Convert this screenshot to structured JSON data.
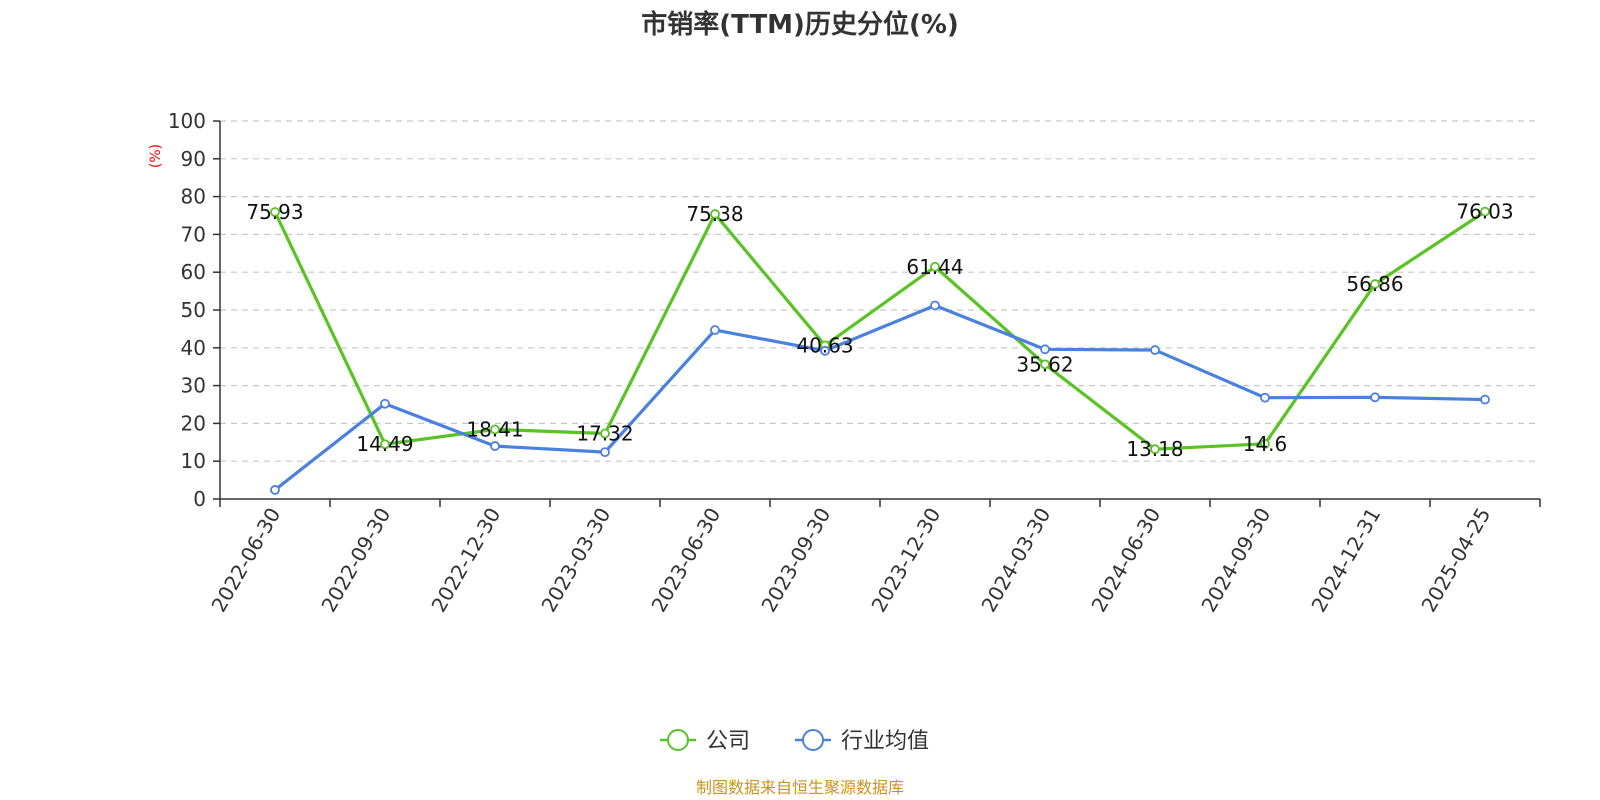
{
  "chart_data": {
    "type": "line",
    "title": "市销率(TTM)历史分位(%)",
    "ylabel": "(%)",
    "ylim": [
      0,
      100
    ],
    "yticks": [
      0,
      10,
      20,
      30,
      40,
      50,
      60,
      70,
      80,
      90,
      100
    ],
    "grid": true,
    "legend_position": "bottom-center",
    "categories": [
      "2022-06-30",
      "2022-09-30",
      "2022-12-30",
      "2023-03-30",
      "2023-06-30",
      "2023-09-30",
      "2023-12-30",
      "2024-03-30",
      "2024-06-30",
      "2024-09-30",
      "2024-12-31",
      "2025-04-25"
    ],
    "series": [
      {
        "name": "公司",
        "color": "#58c322",
        "values": [
          75.93,
          14.49,
          18.41,
          17.32,
          75.38,
          40.63,
          61.44,
          35.62,
          13.18,
          14.6,
          56.86,
          76.03
        ],
        "labels": [
          "75.93",
          "14.49",
          "18.41",
          "17.32",
          "75.38",
          "40.63",
          "61.44",
          "35.62",
          "13.18",
          "14.6",
          "56.86",
          "76.03"
        ]
      },
      {
        "name": "行业均值",
        "color": "#4a80e0",
        "values": [
          2.4,
          25.2,
          14.0,
          12.4,
          44.7,
          39.2,
          51.2,
          39.6,
          39.4,
          26.8,
          26.9,
          26.3
        ]
      }
    ],
    "source": "制图数据来自恒生聚源数据库"
  }
}
